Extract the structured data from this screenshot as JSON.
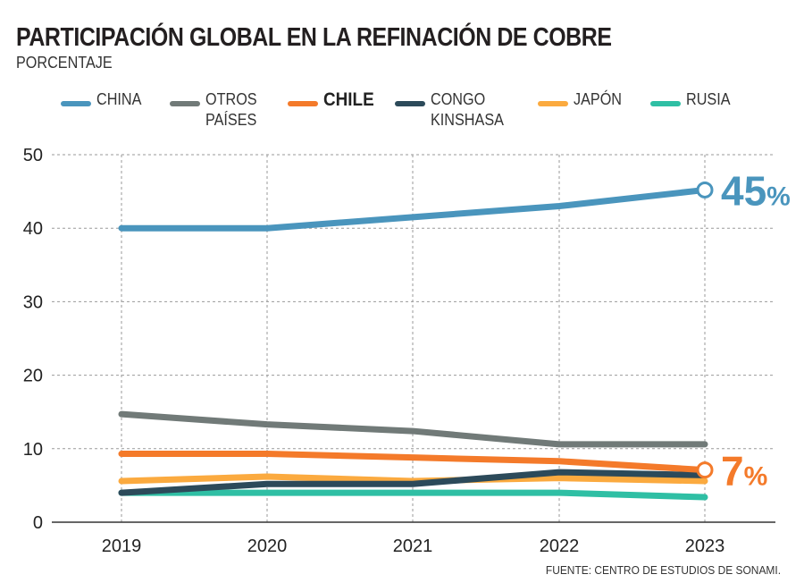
{
  "chart_data": {
    "type": "line",
    "title": "PARTICIPACIÓN GLOBAL EN LA REFINACIÓN DE COBRE",
    "subtitle": "PORCENTAJE",
    "x": [
      "2019",
      "2020",
      "2021",
      "2022",
      "2023"
    ],
    "ylim": [
      0,
      50
    ],
    "yticks": [
      "0",
      "10",
      "20",
      "30",
      "40",
      "50"
    ],
    "grid": true,
    "legend_position": "top",
    "series": [
      {
        "name": "CHINA",
        "color": "#4a95bd",
        "values": [
          40,
          40,
          41.5,
          43,
          45.2
        ],
        "end_label": "45%"
      },
      {
        "name": "OTROS\nPAÍSES",
        "color": "#717a78",
        "values": [
          14.7,
          13.3,
          12.4,
          10.6,
          10.6
        ]
      },
      {
        "name": "CHILE",
        "color": "#f47a2a",
        "values": [
          9.3,
          9.3,
          8.8,
          8.3,
          7.1
        ],
        "end_label": "7%",
        "bold": true
      },
      {
        "name": "CONGO\nKINSHASA",
        "color": "#2c4a5a",
        "values": [
          4,
          5.2,
          5.2,
          6.8,
          6.4
        ]
      },
      {
        "name": "JAPÓN",
        "color": "#fbaa3f",
        "values": [
          5.6,
          6.2,
          5.6,
          6.0,
          5.6
        ]
      },
      {
        "name": "RUSIA",
        "color": "#2fbfa4",
        "values": [
          4,
          4,
          4,
          4,
          3.4
        ]
      }
    ],
    "source": "FUENTE: CENTRO DE ESTUDIOS DE SONAMI."
  }
}
